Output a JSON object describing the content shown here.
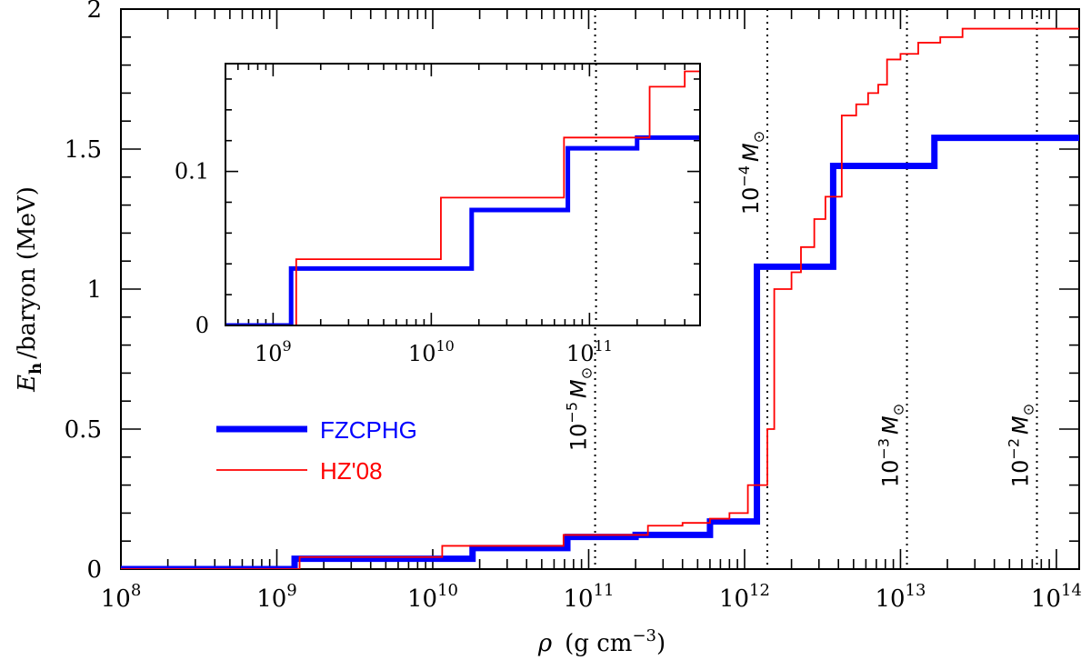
{
  "chart_data": {
    "type": "line",
    "xscale": "log",
    "xlim": [
      100000000.0,
      140000000000000.0
    ],
    "ylim": [
      0,
      2
    ],
    "xlabel": {
      "sym": "ρ",
      "units": "(g cm",
      "exp": "−3",
      "close": ")"
    },
    "ylabel": {
      "sym": "E",
      "sub": "h",
      "rest": "/baryon (MeV)"
    },
    "x_ticks": [
      {
        "value": 100000000.0,
        "base": "10",
        "exp": "8"
      },
      {
        "value": 1000000000.0,
        "base": "10",
        "exp": "9"
      },
      {
        "value": 10000000000.0,
        "base": "10",
        "exp": "10"
      },
      {
        "value": 100000000000.0,
        "base": "10",
        "exp": "11"
      },
      {
        "value": 1000000000000.0,
        "base": "10",
        "exp": "12"
      },
      {
        "value": 10000000000000.0,
        "base": "10",
        "exp": "13"
      },
      {
        "value": 100000000000000.0,
        "base": "10",
        "exp": "14"
      }
    ],
    "y_ticks": [
      {
        "value": 0,
        "label": "0"
      },
      {
        "value": 0.5,
        "label": "0.5"
      },
      {
        "value": 1,
        "label": "1"
      },
      {
        "value": 1.5,
        "label": "1.5"
      },
      {
        "value": 2,
        "label": "2"
      }
    ],
    "series": [
      {
        "name": "FZCPHG",
        "color": "#0000ff",
        "style": "thick",
        "x": [
          100000000.0,
          1300000000.0,
          1300000000.0,
          18000000000.0,
          18000000000.0,
          73000000000.0,
          73000000000.0,
          200000000000.0,
          200000000000.0,
          600000000000.0,
          600000000000.0,
          1200000000000.0,
          1200000000000.0,
          3700000000000.0,
          3700000000000.0,
          16500000000000.0,
          16500000000000.0,
          140000000000000.0
        ],
        "y": [
          0,
          0,
          0.037,
          0.037,
          0.075,
          0.075,
          0.115,
          0.115,
          0.122,
          0.122,
          0.17,
          0.17,
          1.08,
          1.08,
          1.44,
          1.44,
          1.54,
          1.54
        ]
      },
      {
        "name": "HZ'08",
        "color": "#ff0000",
        "style": "thin",
        "x": [
          100000000.0,
          1400000000.0,
          1400000000.0,
          11500000000.0,
          11500000000.0,
          69000000000.0,
          69000000000.0,
          240000000000.0,
          240000000000.0,
          400000000000.0,
          400000000000.0,
          600000000000.0,
          600000000000.0,
          800000000000.0,
          800000000000.0,
          1050000000000.0,
          1050000000000.0,
          1400000000000.0,
          1400000000000.0,
          1550000000000.0,
          1550000000000.0,
          2000000000000.0,
          2000000000000.0,
          2300000000000.0,
          2300000000000.0,
          2800000000000.0,
          2800000000000.0,
          3300000000000.0,
          3300000000000.0,
          4200000000000.0,
          4200000000000.0,
          5200000000000.0,
          5200000000000.0,
          6200000000000.0,
          6200000000000.0,
          7200000000000.0,
          7200000000000.0,
          8200000000000.0,
          8200000000000.0,
          10000000000000.0,
          10000000000000.0,
          13000000000000.0,
          13000000000000.0,
          18000000000000.0,
          18000000000000.0,
          25000000000000.0,
          25000000000000.0,
          140000000000000.0
        ],
        "y": [
          0,
          0,
          0.043,
          0.043,
          0.083,
          0.083,
          0.122,
          0.122,
          0.155,
          0.155,
          0.165,
          0.165,
          0.18,
          0.18,
          0.2,
          0.2,
          0.3,
          0.3,
          0.5,
          0.5,
          1.0,
          1.0,
          1.06,
          1.06,
          1.15,
          1.15,
          1.25,
          1.25,
          1.33,
          1.33,
          1.62,
          1.62,
          1.66,
          1.66,
          1.7,
          1.7,
          1.73,
          1.73,
          1.82,
          1.82,
          1.84,
          1.84,
          1.88,
          1.88,
          1.9,
          1.9,
          1.93,
          1.93
        ]
      }
    ],
    "legend": {
      "placement": "lower-left",
      "entries": [
        {
          "label": "FZCPHG",
          "color": "#0000ff"
        },
        {
          "label": "HZ'08",
          "color": "#ff0000"
        }
      ]
    },
    "mass_markers": [
      {
        "x": 110000000000.0,
        "base": "10",
        "exp": "−5",
        "unit": "M",
        "sub": "⊙"
      },
      {
        "x": 1400000000000.0,
        "base": "10",
        "exp": "−4",
        "unit": "M",
        "sub": "⊙"
      },
      {
        "x": 11000000000000.0,
        "base": "10",
        "exp": "−3",
        "unit": "M",
        "sub": "⊙"
      },
      {
        "x": 75000000000000.0,
        "base": "10",
        "exp": "−2",
        "unit": "M",
        "sub": "⊙"
      }
    ],
    "inset": {
      "xscale": "log",
      "xlim": [
        500000000.0,
        500000000000.0
      ],
      "ylim": [
        0,
        0.17
      ],
      "x_ticks": [
        {
          "value": 1000000000.0,
          "base": "10",
          "exp": "9"
        },
        {
          "value": 10000000000.0,
          "base": "10",
          "exp": "10"
        },
        {
          "value": 100000000000.0,
          "base": "10",
          "exp": "11"
        }
      ],
      "y_ticks": [
        {
          "value": 0,
          "label": "0"
        },
        {
          "value": 0.1,
          "label": "0.1"
        }
      ],
      "marker_x": 110000000000.0
    }
  }
}
